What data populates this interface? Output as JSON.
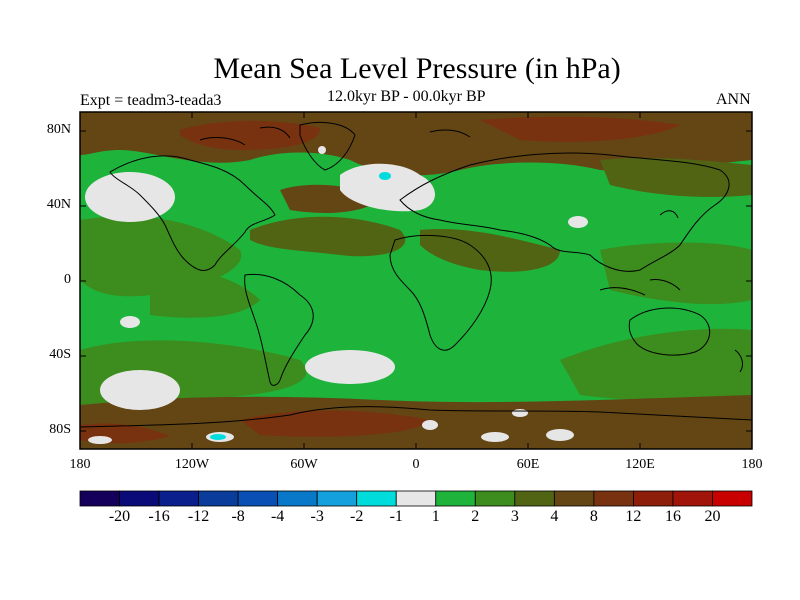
{
  "title": "Mean Sea Level Pressure (in hPa)",
  "experiment": "Expt = teadm3-teada3",
  "period": "12.0kyr BP - 00.0kyr BP",
  "season": "ANN",
  "lat_ticks": [
    "80N",
    "40N",
    "0",
    "40S",
    "80S"
  ],
  "lon_ticks": [
    "180",
    "120W",
    "60W",
    "0",
    "60E",
    "120E",
    "180"
  ],
  "colorbar": {
    "labels": [
      "-20",
      "-16",
      "-12",
      "-8",
      "-4",
      "-3",
      "-2",
      "-1",
      "1",
      "2",
      "3",
      "4",
      "8",
      "12",
      "16",
      "20"
    ],
    "colors": [
      "#14005a",
      "#0a0a78",
      "#0a1e8c",
      "#0a3c9c",
      "#0a50b4",
      "#0a78c8",
      "#14a0dc",
      "#00dcdc",
      "#e6e6e6",
      "#1eb43c",
      "#3c8c1e",
      "#506414",
      "#644614",
      "#78320f",
      "#8c1e0a",
      "#a0140a",
      "#c80000"
    ]
  },
  "map_colors": {
    "neutral": "#e6e6e6",
    "pos_1_2": "#1eb43c",
    "pos_2_3": "#3c8c1e",
    "pos_3_4": "#506414",
    "pos_4_8": "#644614",
    "pos_8_12": "#78320f",
    "neg_2_1": "#00dcdc",
    "coast": "#000000"
  }
}
